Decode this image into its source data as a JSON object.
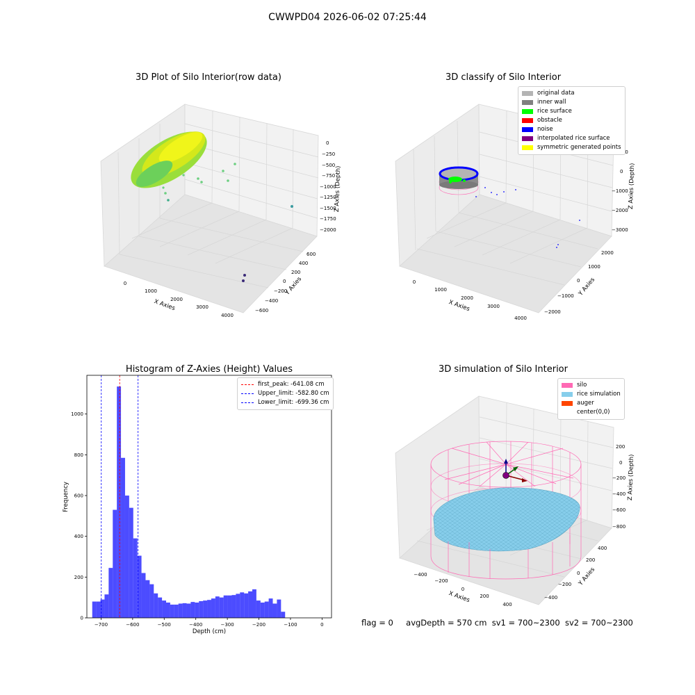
{
  "suptitle": "CWWPD04 2026-06-02 07:25:44",
  "panels": {
    "raw": {
      "title": "3D Plot of Silo Interior(row data)",
      "x_label": "X Axies",
      "y_label": "Y Axies",
      "z_label": "Z Axies (Depth)",
      "x_ticks": [
        "0",
        "1000",
        "2000",
        "3000",
        "4000"
      ],
      "y_ticks": [
        "600",
        "400",
        "200",
        "0",
        "−200",
        "−400",
        "−600"
      ],
      "z_ticks": [
        "0",
        "−250",
        "−500",
        "−750",
        "−1000",
        "−1250",
        "−1500",
        "−1750",
        "−2000"
      ]
    },
    "classify": {
      "title": "3D classify of Silo Interior",
      "x_label": "X Axies",
      "y_label": "Y Axies",
      "z_label": "Z Axies (Depth)",
      "x_ticks": [
        "0",
        "1000",
        "2000",
        "3000",
        "4000"
      ],
      "y_ticks": [
        "2000",
        "1000",
        "0",
        "−1000",
        "−2000"
      ],
      "z_ticks": [
        "1000",
        "0",
        "−1000",
        "−2000",
        "−3000"
      ],
      "legend": [
        {
          "label": "original data",
          "color": "#b4b4b4"
        },
        {
          "label": "inner wall",
          "color": "#808080"
        },
        {
          "label": "rice surface",
          "color": "#00ff00"
        },
        {
          "label": "obstacle",
          "color": "#ff0000"
        },
        {
          "label": "noise",
          "color": "#0000ff"
        },
        {
          "label": "interpolated rice surface",
          "color": "#800080"
        },
        {
          "label": "symmetric generated points",
          "color": "#ffff00"
        }
      ]
    },
    "simulation": {
      "title": "3D simulation of Silo Interior",
      "x_label": "X Axies",
      "y_label": "Y Axies",
      "z_label": "Z Axies (Depth)",
      "x_ticks": [
        "−400",
        "−200",
        "0",
        "200",
        "400"
      ],
      "y_ticks": [
        "400",
        "200",
        "0",
        "−200",
        "−400"
      ],
      "z_ticks": [
        "200",
        "0",
        "−200",
        "−400",
        "−600",
        "−800"
      ],
      "legend": [
        {
          "label": "silo",
          "color": "#ff69b4"
        },
        {
          "label": "rice simulation",
          "color": "#87ceeb"
        },
        {
          "label": "auger",
          "color": "#ff4500"
        },
        {
          "label": "center(0,0)",
          "color": "#ffffff"
        }
      ]
    }
  },
  "chart_data": {
    "type": "bar",
    "title": "Histogram of Z-Axies (Height) Values",
    "xlabel": "Depth (cm)",
    "ylabel": "Frequency",
    "xlim": [
      -745,
      30
    ],
    "ylim": [
      0,
      1190
    ],
    "x_ticks": [
      -700,
      -600,
      -500,
      -400,
      -300,
      -200,
      -100,
      0
    ],
    "x_tick_labels": [
      "−700",
      "−600",
      "−500",
      "−400",
      "−300",
      "−200",
      "−100",
      "0"
    ],
    "y_ticks": [
      0,
      200,
      400,
      600,
      800,
      1000
    ],
    "bin_start": -728,
    "bin_width": 13,
    "values": [
      80,
      80,
      90,
      115,
      245,
      530,
      1135,
      785,
      600,
      540,
      390,
      305,
      220,
      185,
      165,
      120,
      100,
      85,
      75,
      65,
      65,
      70,
      72,
      70,
      78,
      75,
      82,
      85,
      88,
      95,
      105,
      100,
      110,
      110,
      112,
      118,
      125,
      120,
      130,
      140,
      85,
      75,
      80,
      95,
      70,
      90,
      30
    ],
    "color": "#0000ff",
    "vlines": [
      {
        "label": "first_peak: -641.08 cm",
        "x": -641.08,
        "color": "#ff0000"
      },
      {
        "label": "Upper_limit: -582.80 cm",
        "x": -582.8,
        "color": "#0000ff"
      },
      {
        "label": "Lower_limit: -699.36 cm",
        "x": -699.36,
        "color": "#0000ff"
      }
    ]
  },
  "footer": {
    "flag": "flag = 0",
    "avg": "avgDepth = 570 cm",
    "sv1": "sv1 = 700~2300",
    "sv2": "sv2 = 700~2300"
  }
}
